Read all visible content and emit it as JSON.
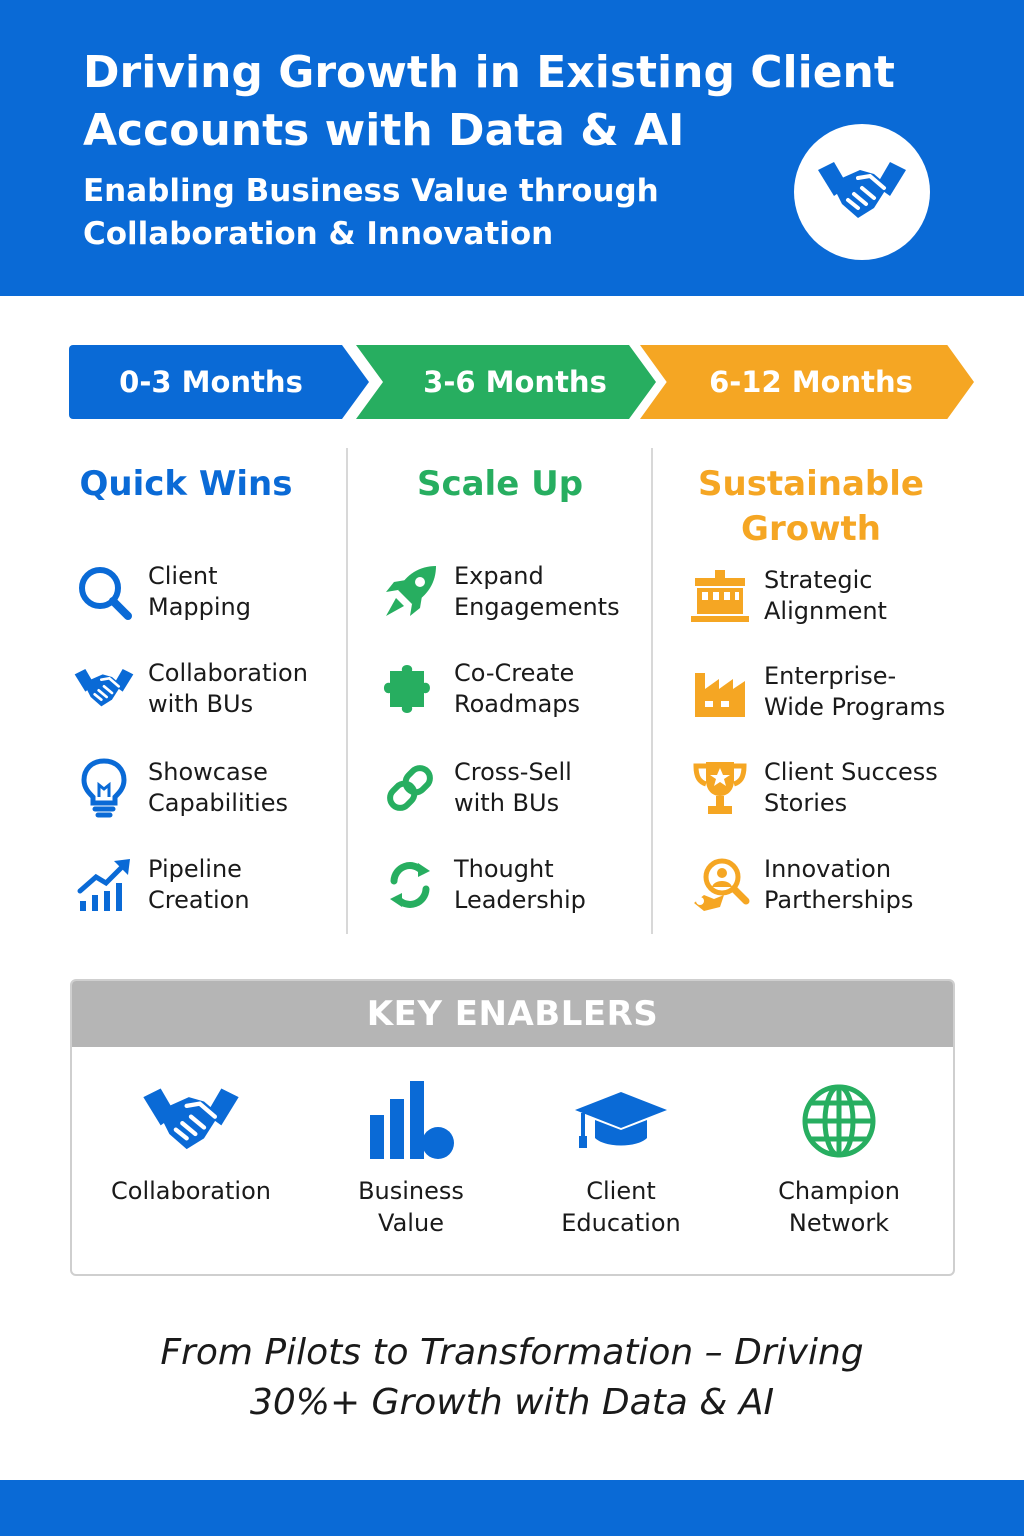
{
  "header": {
    "title": "Driving Growth in Existing Client Accounts with Data & AI",
    "subtitle": "Enabling Business Value through Collaboration & Innovation",
    "badge_icon": "handshake-icon"
  },
  "phases": [
    {
      "period": "0-3 Months",
      "heading": "Quick Wins",
      "color": "#0a6ad6",
      "items": [
        {
          "label": "Client\nMapping",
          "icon": "search-icon"
        },
        {
          "label": "Collaboration\nwith BUs",
          "icon": "handshake-icon"
        },
        {
          "label": "Showcase\nCapabilities",
          "icon": "lightbulb-icon"
        },
        {
          "label": "Pipeline\nCreation",
          "icon": "growth-chart-icon"
        }
      ]
    },
    {
      "period": "3-6 Months",
      "heading": "Scale Up",
      "color": "#27ae60",
      "items": [
        {
          "label": "Expand\nEngagements",
          "icon": "rocket-icon"
        },
        {
          "label": "Co-Create\nRoadmaps",
          "icon": "puzzle-icon"
        },
        {
          "label": "Cross-Sell\nwith BUs",
          "icon": "link-icon"
        },
        {
          "label": "Thought\nLeadership",
          "icon": "refresh-icon"
        }
      ]
    },
    {
      "period": "6-12 Months",
      "heading": "Sustainable\nGrowth",
      "color": "#f5a623",
      "items": [
        {
          "label": "Strategic\nAlignment",
          "icon": "building-icon"
        },
        {
          "label": "Enterprise-\nWide Programs",
          "icon": "factory-icon"
        },
        {
          "label": "Client Success\nStories",
          "icon": "trophy-icon"
        },
        {
          "label": "Innovation\nPartherships",
          "icon": "person-search-icon"
        }
      ]
    }
  ],
  "enablers": {
    "title": "KEY ENABLERS",
    "items": [
      {
        "label": "Collaboration",
        "icon": "handshake-icon"
      },
      {
        "label": "Business\nValue",
        "icon": "bar-chart-icon"
      },
      {
        "label": "Client\nEducation",
        "icon": "graduation-cap-icon"
      },
      {
        "label": "Champion\nNetwork",
        "icon": "globe-icon"
      }
    ]
  },
  "tagline": "From Pilots to Transformation – Driving 30%+ Growth with Data & AI"
}
